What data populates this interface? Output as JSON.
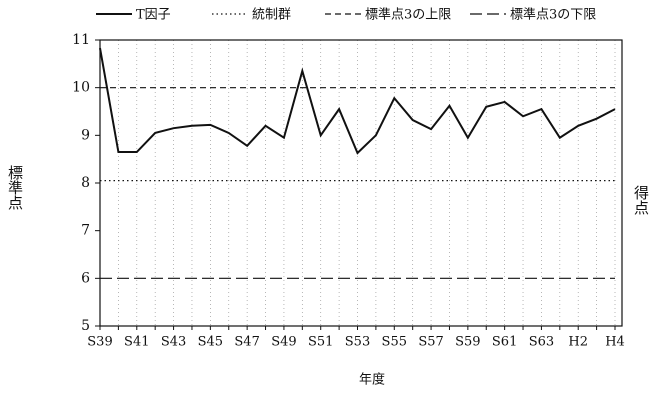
{
  "chart_data": {
    "type": "line",
    "xlabel": "年度",
    "ylabel": "標準点",
    "ylabel_right": "得点",
    "categories": [
      "S39",
      null,
      "S41",
      null,
      "S43",
      null,
      "S45",
      null,
      "S47",
      null,
      "S49",
      null,
      "S51",
      null,
      "S53",
      null,
      "S55",
      null,
      "S57",
      null,
      "S59",
      null,
      "S61",
      null,
      "S63",
      null,
      "H2",
      null,
      "H4"
    ],
    "ylim": [
      5,
      11
    ],
    "yticks": [
      5,
      6,
      7,
      8,
      9,
      10,
      11
    ],
    "x_grid": true,
    "series": [
      {
        "name": "T因子",
        "color": "#111111",
        "dash": "solid",
        "values": [
          10.83,
          8.65,
          8.65,
          9.05,
          9.15,
          9.2,
          9.22,
          9.05,
          8.78,
          9.2,
          8.95,
          10.35,
          9.0,
          9.55,
          8.63,
          9.0,
          9.78,
          9.32,
          9.13,
          9.62,
          8.95,
          9.6,
          9.7,
          9.4,
          9.55,
          8.95,
          9.2,
          9.35,
          9.55
        ]
      },
      {
        "name": "統制群",
        "color": "#111111",
        "dash": "dotted",
        "values": [
          8.05,
          8.05,
          8.05,
          8.05,
          8.05,
          8.05,
          8.05,
          8.05,
          8.05,
          8.05,
          8.05,
          8.05,
          8.05,
          8.05,
          8.05,
          8.05,
          8.05,
          8.05,
          8.05,
          8.05,
          8.05,
          8.05,
          8.05,
          8.05,
          8.05,
          8.05,
          8.05,
          8.05,
          8.05
        ]
      },
      {
        "name": "標準点3の上限",
        "color": "#111111",
        "dash": "dashed",
        "values": [
          10,
          10,
          10,
          10,
          10,
          10,
          10,
          10,
          10,
          10,
          10,
          10,
          10,
          10,
          10,
          10,
          10,
          10,
          10,
          10,
          10,
          10,
          10,
          10,
          10,
          10,
          10,
          10,
          10
        ]
      },
      {
        "name": "標準点3の下限",
        "color": "#111111",
        "dash": "long-dashed",
        "values": [
          6,
          6,
          6,
          6,
          6,
          6,
          6,
          6,
          6,
          6,
          6,
          6,
          6,
          6,
          6,
          6,
          6,
          6,
          6,
          6,
          6,
          6,
          6,
          6,
          6,
          6,
          6,
          6,
          6
        ]
      }
    ]
  }
}
